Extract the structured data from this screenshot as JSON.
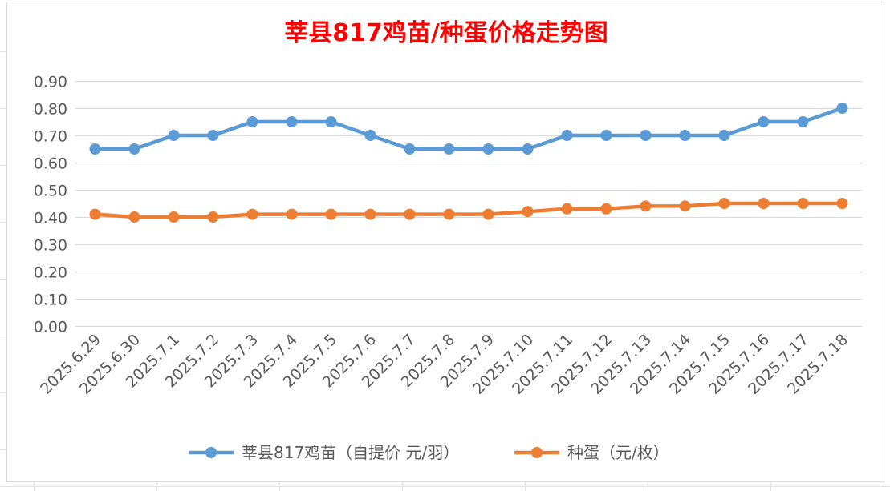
{
  "chart_data": {
    "type": "line",
    "title": "莘县817鸡苗/种蛋价格走势图",
    "categories": [
      "2025.6.29",
      "2025.6.30",
      "2025.7.1",
      "2025.7.2",
      "2025.7.3",
      "2025.7.4",
      "2025.7.5",
      "2025.7.6",
      "2025.7.7",
      "2025.7.8",
      "2025.7.9",
      "2025.7.10",
      "2025.7.11",
      "2025.7.12",
      "2025.7.13",
      "2025.7.14",
      "2025.7.15",
      "2025.7.16",
      "2025.7.17",
      "2025.7.18"
    ],
    "series": [
      {
        "name": "莘县817鸡苗（自提价 元/羽）",
        "color": "#5b9bd5",
        "values": [
          0.65,
          0.65,
          0.7,
          0.7,
          0.75,
          0.75,
          0.75,
          0.7,
          0.65,
          0.65,
          0.65,
          0.65,
          0.7,
          0.7,
          0.7,
          0.7,
          0.7,
          0.75,
          0.75,
          0.8
        ]
      },
      {
        "name": "种蛋（元/枚）",
        "color": "#ed7d31",
        "values": [
          0.41,
          0.4,
          0.4,
          0.4,
          0.41,
          0.41,
          0.41,
          0.41,
          0.41,
          0.41,
          0.41,
          0.42,
          0.43,
          0.43,
          0.44,
          0.44,
          0.45,
          0.45,
          0.45,
          0.45
        ]
      }
    ],
    "ylim": [
      0,
      0.9
    ],
    "yticks": [
      "0.00",
      "0.10",
      "0.20",
      "0.30",
      "0.40",
      "0.50",
      "0.60",
      "0.70",
      "0.80",
      "0.90"
    ],
    "grid": true,
    "legend_position": "bottom"
  }
}
